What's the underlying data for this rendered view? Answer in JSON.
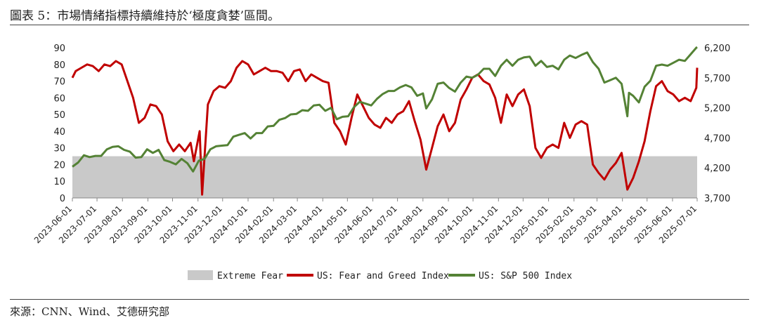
{
  "header": {
    "title": "圖表 5：市場情緒指標持續維持於‘極度貪婪’區間。"
  },
  "footer": {
    "source": "來源：CNN、Wind、艾德研究部"
  },
  "chart_data": {
    "type": "line",
    "title": "圖表 5：市場情緒指標持續維持於‘極度貪婪’區間。",
    "left_axis": {
      "ylim": [
        0,
        90
      ],
      "ticks": [
        "0",
        "10",
        "20",
        "30",
        "40",
        "50",
        "60",
        "70",
        "80",
        "90"
      ]
    },
    "right_axis": {
      "ylim": [
        3700,
        6200
      ],
      "ticks": [
        "3,700",
        "4,200",
        "4,700",
        "5,200",
        "5,700",
        "6,200"
      ]
    },
    "x_ticks": [
      "2023-06-01",
      "2023-07-01",
      "2023-08-01",
      "2023-09-01",
      "2023-10-01",
      "2023-11-01",
      "2023-12-01",
      "2024-01-01",
      "2024-02-01",
      "2024-03-01",
      "2024-04-01",
      "2024-05-01",
      "2024-06-01",
      "2024-07-01",
      "2024-08-01",
      "2024-09-01",
      "2024-10-01",
      "2024-11-01",
      "2024-12-01",
      "2025-01-01",
      "2025-02-01",
      "2025-03-01",
      "2025-04-01",
      "2025-05-01",
      "2025-06-01",
      "2025-07-01"
    ],
    "x_range": [
      "2023-06-01",
      "2025-07-01"
    ],
    "extreme_fear": {
      "name": "Extreme Fear",
      "upper": 25,
      "color": "#c9c9c9"
    },
    "series": [
      {
        "name": "US: Fear and Greed Index",
        "axis": "left",
        "color": "#c00000",
        "points": [
          [
            "2023-06-01",
            72
          ],
          [
            "2023-06-05",
            76
          ],
          [
            "2023-06-12",
            78
          ],
          [
            "2023-06-19",
            80
          ],
          [
            "2023-06-26",
            79
          ],
          [
            "2023-07-03",
            76
          ],
          [
            "2023-07-10",
            80
          ],
          [
            "2023-07-17",
            79
          ],
          [
            "2023-07-24",
            82
          ],
          [
            "2023-07-31",
            80
          ],
          [
            "2023-08-07",
            70
          ],
          [
            "2023-08-14",
            60
          ],
          [
            "2023-08-21",
            45
          ],
          [
            "2023-08-28",
            48
          ],
          [
            "2023-09-04",
            56
          ],
          [
            "2023-09-11",
            55
          ],
          [
            "2023-09-18",
            50
          ],
          [
            "2023-09-25",
            34
          ],
          [
            "2023-10-02",
            28
          ],
          [
            "2023-10-09",
            32
          ],
          [
            "2023-10-16",
            28
          ],
          [
            "2023-10-23",
            33
          ],
          [
            "2023-10-27",
            22
          ],
          [
            "2023-11-03",
            40
          ],
          [
            "2023-11-06",
            2
          ],
          [
            "2023-11-13",
            56
          ],
          [
            "2023-11-20",
            64
          ],
          [
            "2023-11-27",
            67
          ],
          [
            "2023-12-04",
            66
          ],
          [
            "2023-12-11",
            70
          ],
          [
            "2023-12-18",
            78
          ],
          [
            "2023-12-25",
            82
          ],
          [
            "2024-01-01",
            80
          ],
          [
            "2024-01-08",
            74
          ],
          [
            "2024-01-15",
            76
          ],
          [
            "2024-01-22",
            78
          ],
          [
            "2024-01-29",
            76
          ],
          [
            "2024-02-05",
            76
          ],
          [
            "2024-02-12",
            75
          ],
          [
            "2024-02-19",
            70
          ],
          [
            "2024-02-26",
            76
          ],
          [
            "2024-03-04",
            77
          ],
          [
            "2024-03-11",
            70
          ],
          [
            "2024-03-18",
            74
          ],
          [
            "2024-03-25",
            72
          ],
          [
            "2024-04-01",
            70
          ],
          [
            "2024-04-08",
            69
          ],
          [
            "2024-04-15",
            45
          ],
          [
            "2024-04-22",
            40
          ],
          [
            "2024-04-29",
            32
          ],
          [
            "2024-05-06",
            48
          ],
          [
            "2024-05-13",
            62
          ],
          [
            "2024-05-20",
            55
          ],
          [
            "2024-05-27",
            48
          ],
          [
            "2024-06-03",
            44
          ],
          [
            "2024-06-10",
            42
          ],
          [
            "2024-06-17",
            48
          ],
          [
            "2024-06-24",
            45
          ],
          [
            "2024-07-01",
            50
          ],
          [
            "2024-07-08",
            52
          ],
          [
            "2024-07-15",
            58
          ],
          [
            "2024-07-22",
            46
          ],
          [
            "2024-07-29",
            35
          ],
          [
            "2024-08-05",
            17
          ],
          [
            "2024-08-12",
            30
          ],
          [
            "2024-08-19",
            43
          ],
          [
            "2024-08-26",
            50
          ],
          [
            "2024-09-02",
            40
          ],
          [
            "2024-09-09",
            45
          ],
          [
            "2024-09-16",
            59
          ],
          [
            "2024-09-23",
            65
          ],
          [
            "2024-09-30",
            72
          ],
          [
            "2024-10-07",
            74
          ],
          [
            "2024-10-14",
            70
          ],
          [
            "2024-10-21",
            68
          ],
          [
            "2024-10-28",
            60
          ],
          [
            "2024-11-04",
            45
          ],
          [
            "2024-11-11",
            62
          ],
          [
            "2024-11-18",
            55
          ],
          [
            "2024-11-25",
            62
          ],
          [
            "2024-12-02",
            65
          ],
          [
            "2024-12-09",
            55
          ],
          [
            "2024-12-16",
            30
          ],
          [
            "2024-12-23",
            24
          ],
          [
            "2024-12-30",
            30
          ],
          [
            "2025-01-06",
            32
          ],
          [
            "2025-01-13",
            30
          ],
          [
            "2025-01-20",
            45
          ],
          [
            "2025-01-27",
            36
          ],
          [
            "2025-02-03",
            44
          ],
          [
            "2025-02-10",
            46
          ],
          [
            "2025-02-17",
            44
          ],
          [
            "2025-02-24",
            20
          ],
          [
            "2025-03-03",
            15
          ],
          [
            "2025-03-10",
            11
          ],
          [
            "2025-03-17",
            17
          ],
          [
            "2025-03-24",
            21
          ],
          [
            "2025-03-31",
            27
          ],
          [
            "2025-04-07",
            5
          ],
          [
            "2025-04-14",
            12
          ],
          [
            "2025-04-21",
            22
          ],
          [
            "2025-04-28",
            34
          ],
          [
            "2025-05-05",
            52
          ],
          [
            "2025-05-12",
            67
          ],
          [
            "2025-05-19",
            70
          ],
          [
            "2025-05-26",
            64
          ],
          [
            "2025-06-02",
            62
          ],
          [
            "2025-06-09",
            58
          ],
          [
            "2025-06-16",
            60
          ],
          [
            "2025-06-23",
            58
          ],
          [
            "2025-06-30",
            66
          ],
          [
            "2025-07-01",
            78
          ]
        ]
      },
      {
        "name": "US: S&P 500 Index",
        "axis": "right",
        "color": "#548235",
        "points": [
          [
            "2023-06-01",
            4220
          ],
          [
            "2023-06-08",
            4290
          ],
          [
            "2023-06-15",
            4410
          ],
          [
            "2023-06-22",
            4380
          ],
          [
            "2023-06-29",
            4400
          ],
          [
            "2023-07-06",
            4400
          ],
          [
            "2023-07-13",
            4510
          ],
          [
            "2023-07-20",
            4550
          ],
          [
            "2023-07-27",
            4560
          ],
          [
            "2023-08-03",
            4500
          ],
          [
            "2023-08-10",
            4470
          ],
          [
            "2023-08-17",
            4370
          ],
          [
            "2023-08-24",
            4380
          ],
          [
            "2023-08-31",
            4510
          ],
          [
            "2023-09-07",
            4450
          ],
          [
            "2023-09-14",
            4500
          ],
          [
            "2023-09-21",
            4330
          ],
          [
            "2023-09-28",
            4300
          ],
          [
            "2023-10-05",
            4260
          ],
          [
            "2023-10-12",
            4350
          ],
          [
            "2023-10-19",
            4280
          ],
          [
            "2023-10-26",
            4140
          ],
          [
            "2023-11-02",
            4320
          ],
          [
            "2023-11-09",
            4350
          ],
          [
            "2023-11-16",
            4510
          ],
          [
            "2023-11-23",
            4560
          ],
          [
            "2023-11-30",
            4570
          ],
          [
            "2023-12-07",
            4580
          ],
          [
            "2023-12-14",
            4720
          ],
          [
            "2023-12-21",
            4750
          ],
          [
            "2023-12-28",
            4780
          ],
          [
            "2024-01-04",
            4690
          ],
          [
            "2024-01-11",
            4780
          ],
          [
            "2024-01-18",
            4780
          ],
          [
            "2024-01-25",
            4890
          ],
          [
            "2024-02-01",
            4900
          ],
          [
            "2024-02-08",
            5000
          ],
          [
            "2024-02-15",
            5030
          ],
          [
            "2024-02-22",
            5090
          ],
          [
            "2024-02-29",
            5100
          ],
          [
            "2024-03-07",
            5160
          ],
          [
            "2024-03-14",
            5150
          ],
          [
            "2024-03-21",
            5240
          ],
          [
            "2024-03-28",
            5250
          ],
          [
            "2024-04-04",
            5150
          ],
          [
            "2024-04-11",
            5200
          ],
          [
            "2024-04-18",
            5010
          ],
          [
            "2024-04-25",
            5050
          ],
          [
            "2024-05-02",
            5060
          ],
          [
            "2024-05-09",
            5210
          ],
          [
            "2024-05-16",
            5300
          ],
          [
            "2024-05-23",
            5270
          ],
          [
            "2024-05-30",
            5240
          ],
          [
            "2024-06-06",
            5350
          ],
          [
            "2024-06-13",
            5430
          ],
          [
            "2024-06-20",
            5480
          ],
          [
            "2024-06-27",
            5480
          ],
          [
            "2024-07-04",
            5540
          ],
          [
            "2024-07-11",
            5580
          ],
          [
            "2024-07-18",
            5540
          ],
          [
            "2024-07-25",
            5400
          ],
          [
            "2024-08-01",
            5440
          ],
          [
            "2024-08-05",
            5190
          ],
          [
            "2024-08-12",
            5340
          ],
          [
            "2024-08-19",
            5600
          ],
          [
            "2024-08-26",
            5620
          ],
          [
            "2024-09-02",
            5530
          ],
          [
            "2024-09-09",
            5470
          ],
          [
            "2024-09-16",
            5620
          ],
          [
            "2024-09-23",
            5720
          ],
          [
            "2024-09-30",
            5700
          ],
          [
            "2024-10-07",
            5750
          ],
          [
            "2024-10-14",
            5850
          ],
          [
            "2024-10-21",
            5850
          ],
          [
            "2024-10-28",
            5730
          ],
          [
            "2024-11-04",
            5900
          ],
          [
            "2024-11-11",
            6000
          ],
          [
            "2024-11-18",
            5900
          ],
          [
            "2024-11-25",
            6000
          ],
          [
            "2024-12-02",
            6040
          ],
          [
            "2024-12-09",
            6050
          ],
          [
            "2024-12-16",
            5900
          ],
          [
            "2024-12-23",
            5980
          ],
          [
            "2024-12-30",
            5880
          ],
          [
            "2025-01-06",
            5900
          ],
          [
            "2025-01-13",
            5840
          ],
          [
            "2025-01-20",
            6000
          ],
          [
            "2025-01-27",
            6070
          ],
          [
            "2025-02-03",
            6030
          ],
          [
            "2025-02-10",
            6080
          ],
          [
            "2025-02-17",
            6120
          ],
          [
            "2025-02-24",
            5960
          ],
          [
            "2025-03-03",
            5850
          ],
          [
            "2025-03-10",
            5620
          ],
          [
            "2025-03-17",
            5660
          ],
          [
            "2025-03-24",
            5700
          ],
          [
            "2025-03-31",
            5600
          ],
          [
            "2025-04-07",
            5060
          ],
          [
            "2025-04-09",
            5450
          ],
          [
            "2025-04-14",
            5400
          ],
          [
            "2025-04-21",
            5290
          ],
          [
            "2025-04-28",
            5550
          ],
          [
            "2025-05-05",
            5650
          ],
          [
            "2025-05-12",
            5900
          ],
          [
            "2025-05-19",
            5920
          ],
          [
            "2025-05-26",
            5900
          ],
          [
            "2025-06-02",
            5950
          ],
          [
            "2025-06-09",
            6000
          ],
          [
            "2025-06-16",
            5980
          ],
          [
            "2025-06-23",
            6090
          ],
          [
            "2025-06-30",
            6200
          ],
          [
            "2025-07-01",
            6210
          ]
        ]
      }
    ],
    "legend": {
      "placement": "bottom",
      "entries": [
        "Extreme Fear",
        "US: Fear and Greed Index",
        "US: S&P 500 Index"
      ]
    },
    "grid": false
  }
}
